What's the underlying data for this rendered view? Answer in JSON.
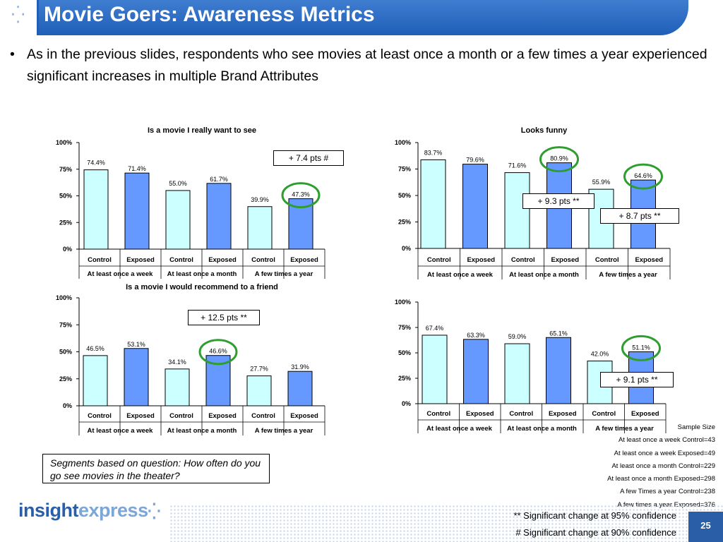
{
  "title": "Movie Goers: Awareness Metrics",
  "bullet": "As in the previous slides, respondents who see movies at least once a month or a few times a year experienced significant increases in multiple Brand Attributes",
  "colors": {
    "control": "#ccffff",
    "exposed": "#6699ff",
    "circle": "#2e9e2e",
    "title_bar": "#1f5fb8"
  },
  "chart_data": [
    {
      "type": "bar",
      "title": "Is a movie I really want to see",
      "categories": [
        "Control",
        "Exposed",
        "Control",
        "Exposed",
        "Control",
        "Exposed"
      ],
      "groups": [
        "At least once a week",
        "At least once a month",
        "A few times a year"
      ],
      "values": [
        74.4,
        71.4,
        55.0,
        61.7,
        39.9,
        47.3
      ],
      "labels": [
        "74.4%",
        "71.4%",
        "55.0%",
        "61.7%",
        "39.9%",
        "47.3%"
      ],
      "yticks": [
        "100%",
        "75%",
        "50%",
        "25%",
        "0%"
      ],
      "ylim": [
        0,
        100
      ],
      "circled": [
        5
      ],
      "callout": "+ 7.4 pts #"
    },
    {
      "type": "bar",
      "title": "Looks funny",
      "categories": [
        "Control",
        "Exposed",
        "Control",
        "Exposed",
        "Control",
        "Exposed"
      ],
      "groups": [
        "At least once a week",
        "At least once a month",
        "A few times a year"
      ],
      "values": [
        83.7,
        79.6,
        71.6,
        80.9,
        55.9,
        64.6
      ],
      "labels": [
        "83.7%",
        "79.6%",
        "71.6%",
        "80.9%",
        "55.9%",
        "64.6%"
      ],
      "yticks": [
        "100%",
        "75%",
        "50%",
        "25%",
        "0%"
      ],
      "ylim": [
        0,
        100
      ],
      "circled": [
        3,
        5
      ],
      "callout": [
        "+ 9.3 pts **",
        "+ 8.7 pts **"
      ]
    },
    {
      "type": "bar",
      "title": "Is a movie I would recommend to a friend",
      "categories": [
        "Control",
        "Exposed",
        "Control",
        "Exposed",
        "Control",
        "Exposed"
      ],
      "groups": [
        "At least once a week",
        "At least once a month",
        "A few times a year"
      ],
      "values": [
        46.5,
        53.1,
        34.1,
        46.6,
        27.7,
        31.9
      ],
      "labels": [
        "46.5%",
        "53.1%",
        "34.1%",
        "46.6%",
        "27.7%",
        "31.9%"
      ],
      "yticks": [
        "100%",
        "75%",
        "50%",
        "25%",
        "0%"
      ],
      "ylim": [
        0,
        100
      ],
      "circled": [
        3
      ],
      "callout": "+ 12.5 pts **"
    },
    {
      "type": "bar",
      "title": "",
      "categories": [
        "Control",
        "Exposed",
        "Control",
        "Exposed",
        "Control",
        "Exposed"
      ],
      "groups": [
        "At least once a week",
        "At least once a month",
        "A few times a year"
      ],
      "values": [
        67.4,
        63.3,
        59.0,
        65.1,
        42.0,
        51.1
      ],
      "labels": [
        "67.4%",
        "63.3%",
        "59.0%",
        "65.1%",
        "42.0%",
        "51.1%"
      ],
      "yticks": [
        "100%",
        "75%",
        "50%",
        "25%",
        "0%"
      ],
      "ylim": [
        0,
        100
      ],
      "circled": [
        5
      ],
      "callout": "+ 9.1 pts **"
    }
  ],
  "note": "Segments based on question: How often do you go see movies in the theater?",
  "sample_size": {
    "heading": "Sample Size",
    "rows": [
      "At least once a week Control=43",
      "At least once a week Exposed=49",
      "At least once a month Control=229",
      "At least once a month Exposed=298",
      "A few Times a year Control=238",
      "A few times a year Exposed=376"
    ]
  },
  "significance": {
    "p95": "** Significant change at 95% confidence",
    "p90": "# Significant change at 90% confidence"
  },
  "logo": {
    "part1": "insight",
    "part2": "express"
  },
  "page_number": "25"
}
